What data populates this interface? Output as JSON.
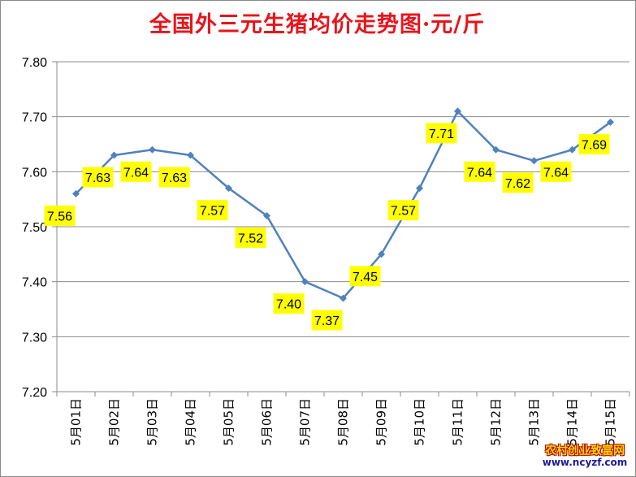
{
  "chart_data": {
    "type": "line",
    "title": "全国外三元生猪均价走势图·元/斤",
    "categories": [
      "5月01日",
      "5月02日",
      "5月03日",
      "5月04日",
      "5月05日",
      "5月06日",
      "5月07日",
      "5月08日",
      "5月09日",
      "5月10日",
      "5月11日",
      "5月12日",
      "5月13日",
      "5月14日",
      "5月15日"
    ],
    "values": [
      7.56,
      7.63,
      7.64,
      7.63,
      7.57,
      7.52,
      7.4,
      7.37,
      7.45,
      7.57,
      7.71,
      7.64,
      7.62,
      7.64,
      7.69
    ],
    "data_labels": [
      "7.56",
      "7.63",
      "7.64",
      "7.63",
      "7.57",
      "7.52",
      "7.40",
      "7.37",
      "7.45",
      "7.57",
      "7.71",
      "7.64",
      "7.62",
      "7.64",
      "7.69"
    ],
    "ylim": [
      7.2,
      7.8
    ],
    "yticks": [
      "7.20",
      "7.30",
      "7.40",
      "7.50",
      "7.60",
      "7.70",
      "7.80"
    ],
    "xlabel": "",
    "ylabel": "",
    "grid": "horizontal",
    "legend": "none",
    "colors": {
      "line": "#4f81bd",
      "label_bg": "#ffff00",
      "title": "#e8141b"
    }
  },
  "watermark": {
    "line1": "农村创业致富网",
    "line2": "www.ncyzf.com"
  }
}
